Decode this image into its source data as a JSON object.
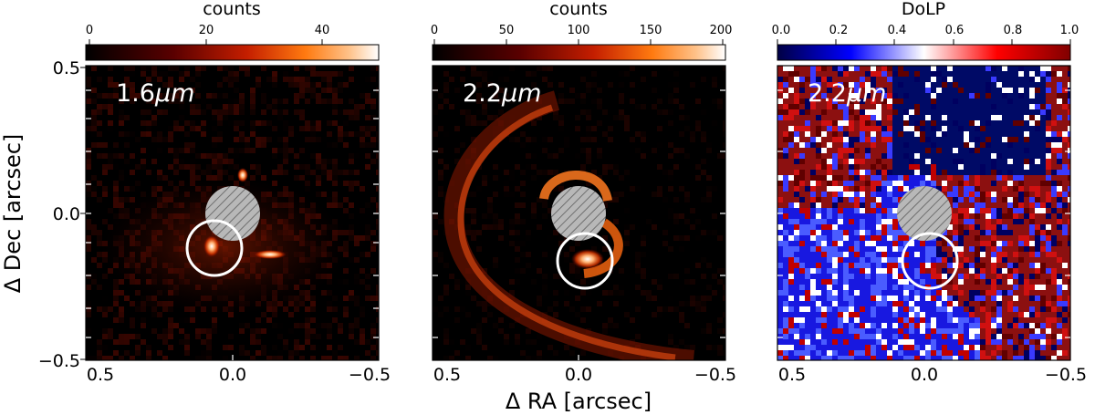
{
  "figure": {
    "xlabel": "Δ RA [arcsec]",
    "ylabel": "Δ Dec [arcsec]",
    "x_ticks": [
      "0.5",
      "0.0",
      "−0.5"
    ],
    "y_ticks": [
      "0.5",
      "0.0",
      "−0.5"
    ]
  },
  "panels": [
    {
      "id": "left",
      "label": "1.6",
      "label_unit": "μm",
      "colorbar_title": "counts",
      "colorbar_ticks": [
        "0",
        "20",
        "40"
      ],
      "colormap": "hot",
      "marker_circle_center": [
        0.06,
        -0.11
      ]
    },
    {
      "id": "middle",
      "label": "2.2",
      "label_unit": "μm",
      "colorbar_title": "counts",
      "colorbar_ticks": [
        "0",
        "50",
        "100",
        "150",
        "200"
      ],
      "colormap": "hot",
      "marker_circle_center": [
        -0.02,
        -0.16
      ]
    },
    {
      "id": "right",
      "label": "2.2",
      "label_unit": "μm",
      "colorbar_title": "DoLP",
      "colorbar_ticks": [
        "0.0",
        "0.2",
        "0.4",
        "0.6",
        "0.8",
        "1.0"
      ],
      "colormap": "seismic",
      "marker_circle_center": [
        -0.02,
        -0.16
      ]
    }
  ],
  "coronagraph_mask": {
    "center": [
      0.0,
      0.0
    ],
    "hatch": true,
    "color": "#b0b0b0"
  },
  "colors": {
    "image_background": "#000000",
    "circle": "#ffffff"
  }
}
